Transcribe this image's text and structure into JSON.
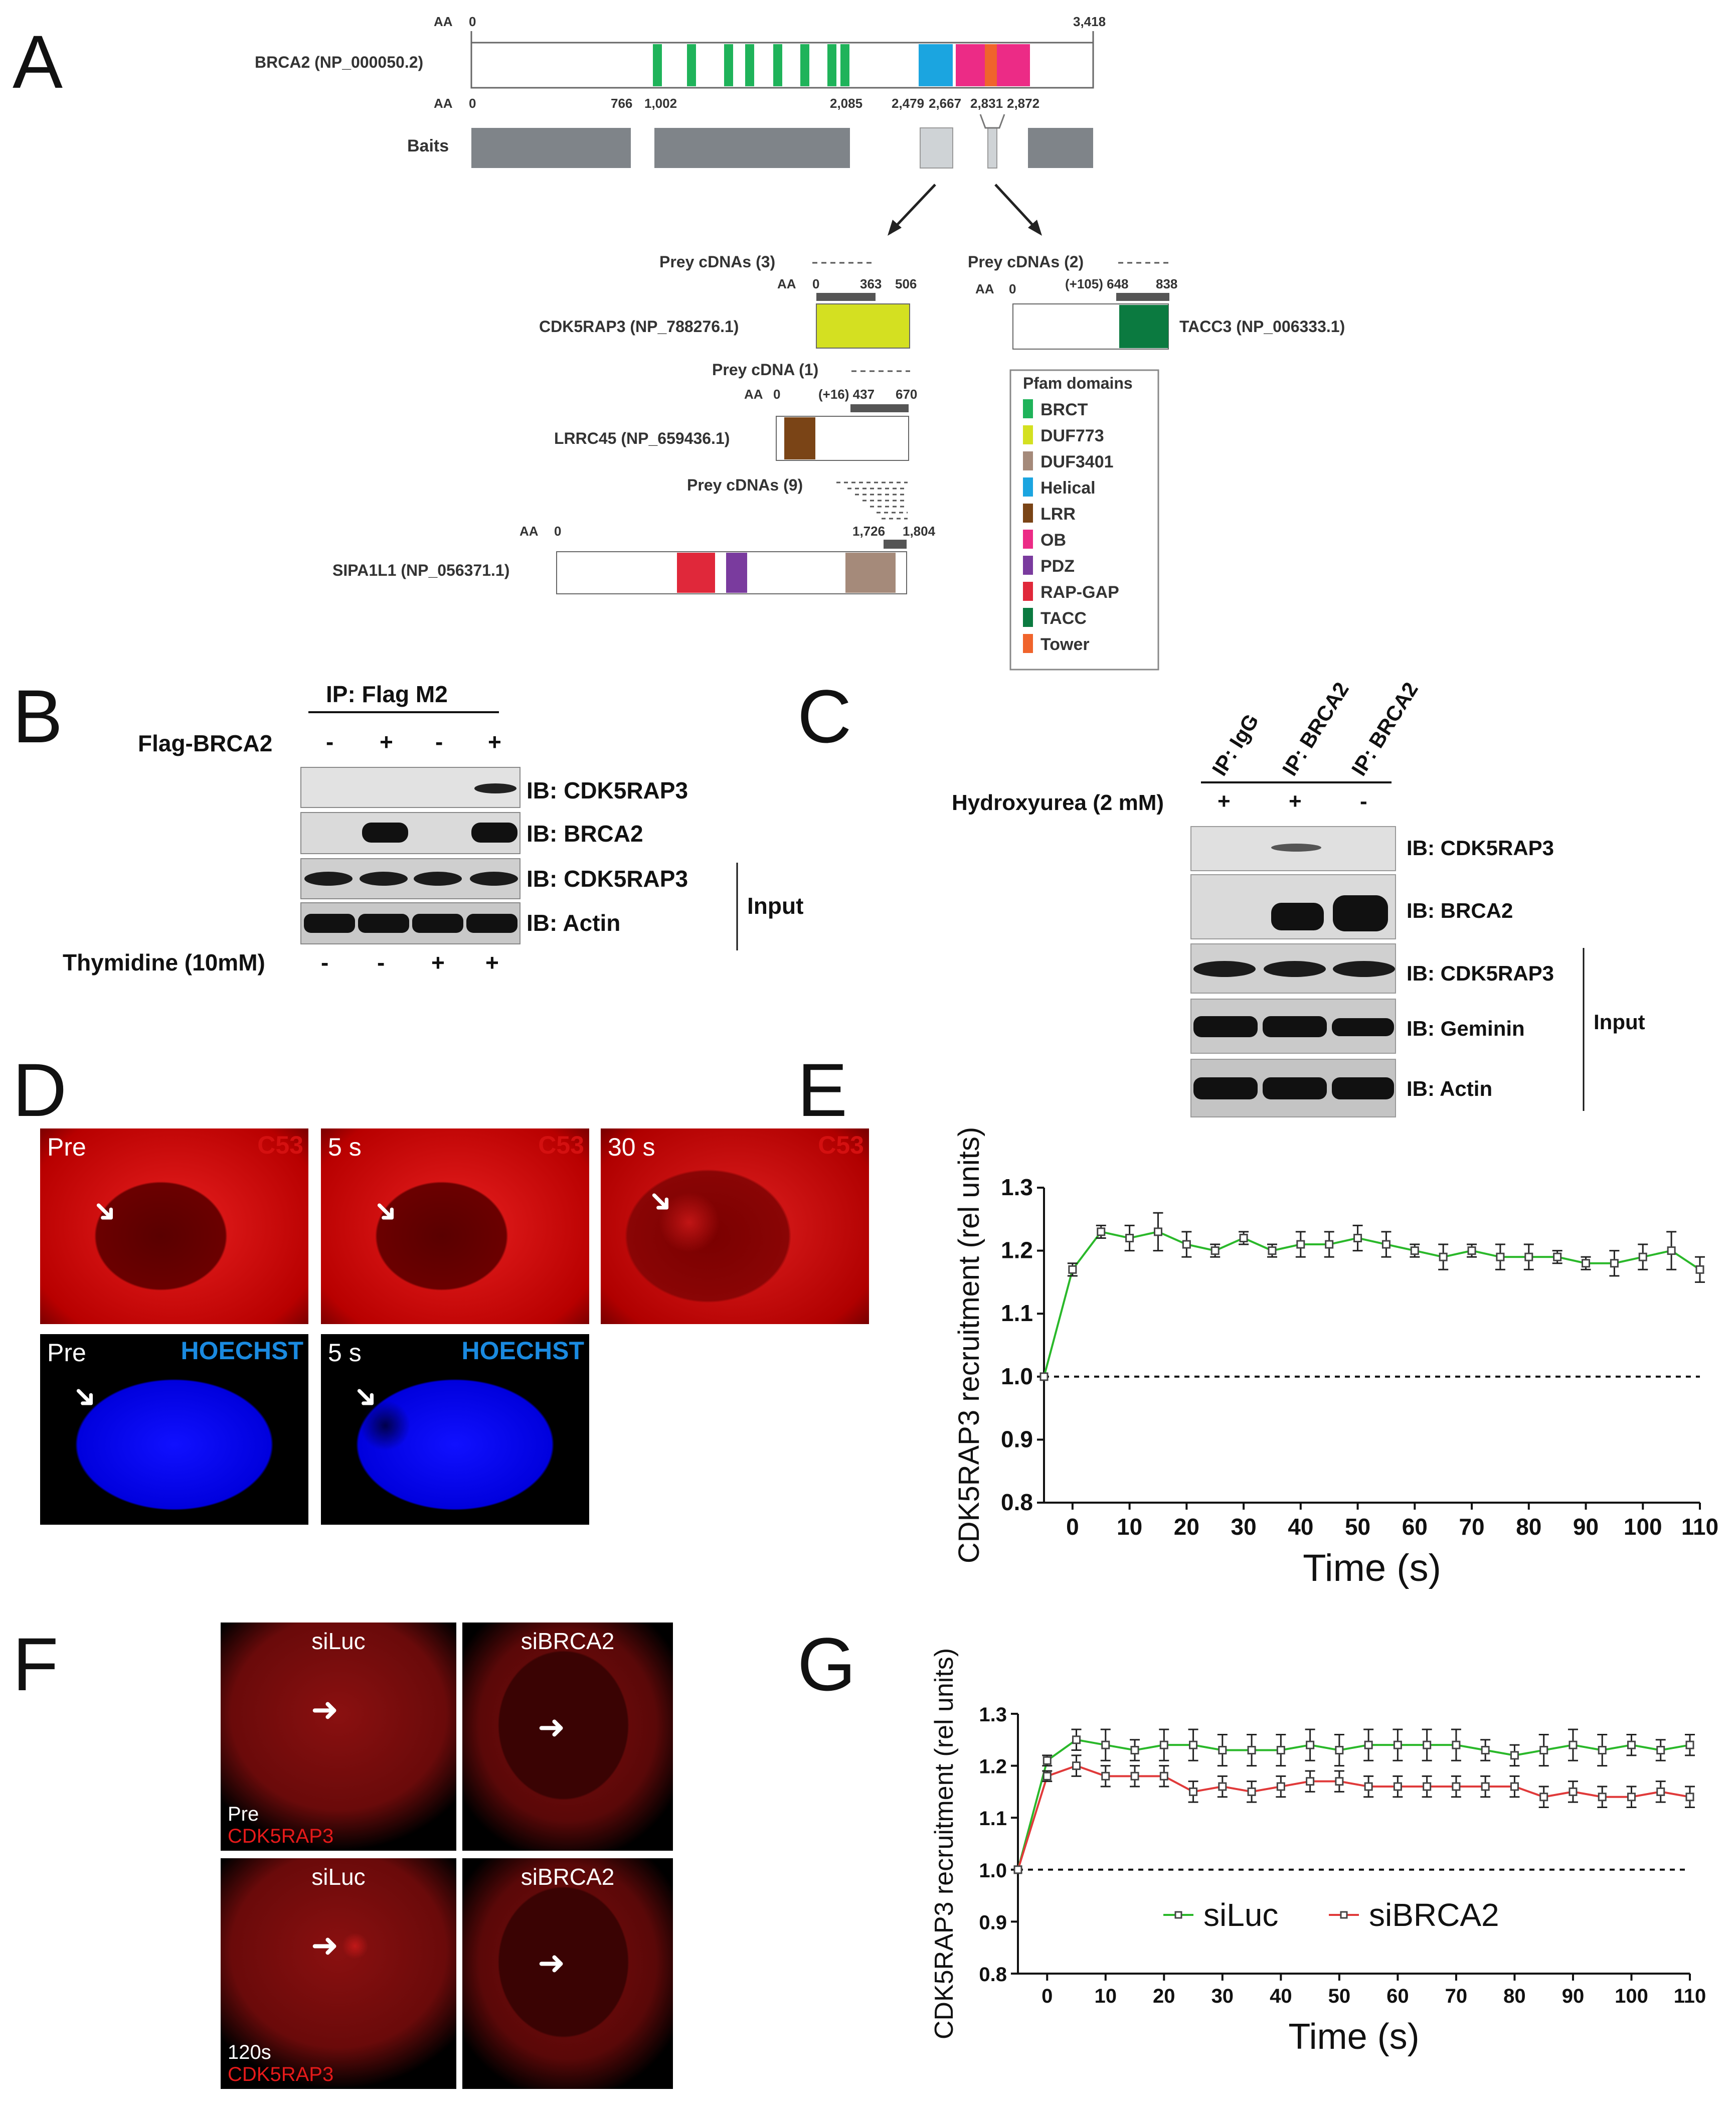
{
  "panel_letters": [
    "A",
    "B",
    "C",
    "D",
    "E",
    "F",
    "G"
  ],
  "panelA": {
    "brca2_label": "BRCA2 (NP_000050.2)",
    "aa": "AA",
    "brca2_ticks": [
      "0",
      "3,418"
    ],
    "baits_label": "Baits",
    "bait_ticks": [
      "0",
      "766",
      "1,002",
      "2,085",
      "2,479",
      "2,667",
      "2,831",
      "2,872"
    ],
    "prey_cdk": "Prey cDNAs (3)",
    "prey_tacc": "Prey cDNAs (2)",
    "prey_lrr": "Prey cDNA (1)",
    "prey_sipa": "Prey cDNAs (9)",
    "cdk5rap3_label": "CDK5RAP3 (NP_788276.1)",
    "cdk_ticks": [
      "0",
      "363",
      "506"
    ],
    "tacc3_label": "TACC3 (NP_006333.1)",
    "tacc_ticks": [
      "0",
      "(+105) 648",
      "838"
    ],
    "lrrc45_label": "LRRC45 (NP_659436.1)",
    "lrr_ticks": [
      "0",
      "(+16) 437",
      "670"
    ],
    "sipa1l1_label": "SIPA1L1 (NP_056371.1)",
    "sipa_ticks": [
      "0",
      "1,726",
      "1,804"
    ],
    "legend_title": "Pfam domains",
    "legend": [
      {
        "name": "BRCT",
        "color": "#1fb35a"
      },
      {
        "name": "DUF773",
        "color": "#d4e021"
      },
      {
        "name": "DUF3401",
        "color": "#a58a7a"
      },
      {
        "name": "Helical",
        "color": "#1ba5e0"
      },
      {
        "name": "LRR",
        "color": "#7a4416"
      },
      {
        "name": "OB",
        "color": "#ec2b86"
      },
      {
        "name": "PDZ",
        "color": "#7a3b9e"
      },
      {
        "name": "RAP-GAP",
        "color": "#e0283a"
      },
      {
        "name": "TACC",
        "color": "#0b7a40"
      },
      {
        "name": "Tower",
        "color": "#f0642c"
      }
    ]
  },
  "panelB": {
    "ip": "IP: Flag M2",
    "row1": "Flag-BRCA2",
    "row1_vals": [
      "-",
      "+",
      "-",
      "+"
    ],
    "bands": [
      "IB: CDK5RAP3",
      "IB: BRCA2",
      "IB: CDK5RAP3",
      "IB: Actin"
    ],
    "input": "Input",
    "row2": "Thymidine (10mM)",
    "row2_vals": [
      "-",
      "-",
      "+",
      "+"
    ]
  },
  "panelC": {
    "lanes": [
      "IP: IgG",
      "IP: BRCA2",
      "IP: BRCA2"
    ],
    "row": "Hydroxyurea (2 mM)",
    "row_vals": [
      "+",
      "+",
      "-"
    ],
    "bands": [
      "IB: CDK5RAP3",
      "IB: BRCA2",
      "IB: CDK5RAP3",
      "IB: Geminin",
      "IB: Actin"
    ],
    "input": "Input"
  },
  "panelD": {
    "top": [
      {
        "time": "Pre",
        "ch": "C53"
      },
      {
        "time": "5 s",
        "ch": "C53"
      },
      {
        "time": "30 s",
        "ch": "C53"
      }
    ],
    "bottom": [
      {
        "time": "Pre",
        "ch": "HOECHST"
      },
      {
        "time": "5 s",
        "ch": "HOECHST"
      }
    ]
  },
  "panelF": {
    "top": [
      {
        "cond": "siLuc",
        "time": "Pre",
        "ch": "CDK5RAP3"
      },
      {
        "cond": "siBRCA2",
        "time": "",
        "ch": ""
      }
    ],
    "bottom": [
      {
        "cond": "siLuc",
        "time": "120s",
        "ch": "CDK5RAP3"
      },
      {
        "cond": "siBRCA2",
        "time": "",
        "ch": ""
      }
    ]
  },
  "chart_data": [
    {
      "id": "E",
      "type": "line",
      "xlabel": "Time (s)",
      "ylabel": "CDK5RAP3 recruitment (rel units)",
      "ylim": [
        0.8,
        1.3
      ],
      "yticks": [
        "0.8",
        "0.9",
        "1.0",
        "1.1",
        "1.2",
        "1.3"
      ],
      "xticks": [
        "0",
        "10",
        "20",
        "30",
        "40",
        "50",
        "60",
        "70",
        "80",
        "90",
        "100",
        "110"
      ],
      "baseline": 1.0,
      "series": [
        {
          "color": "#2ab82a",
          "x": [
            -5,
            0,
            5,
            10,
            15,
            20,
            25,
            30,
            35,
            40,
            45,
            50,
            55,
            60,
            65,
            70,
            75,
            80,
            85,
            90,
            95,
            100,
            105,
            110
          ],
          "y": [
            1.0,
            1.17,
            1.23,
            1.22,
            1.23,
            1.21,
            1.2,
            1.22,
            1.2,
            1.21,
            1.21,
            1.22,
            1.21,
            1.2,
            1.19,
            1.2,
            1.19,
            1.19,
            1.19,
            1.18,
            1.18,
            1.19,
            1.2,
            1.17
          ],
          "err": [
            0,
            0.01,
            0.01,
            0.02,
            0.03,
            0.02,
            0.01,
            0.01,
            0.01,
            0.02,
            0.02,
            0.02,
            0.02,
            0.01,
            0.02,
            0.01,
            0.02,
            0.02,
            0.01,
            0.01,
            0.02,
            0.02,
            0.03,
            0.02
          ]
        }
      ]
    },
    {
      "id": "G",
      "type": "line",
      "xlabel": "Time (s)",
      "ylabel": "CDK5RAP3 recruitment (rel units)",
      "ylim": [
        0.8,
        1.3
      ],
      "yticks": [
        "0.8",
        "0.9",
        "1.0",
        "1.1",
        "1.2",
        "1.3"
      ],
      "xticks": [
        "0",
        "10",
        "20",
        "30",
        "40",
        "50",
        "60",
        "70",
        "80",
        "90",
        "100",
        "110"
      ],
      "baseline": 1.0,
      "legend": "bottom-center",
      "series": [
        {
          "name": "siLuc",
          "color": "#2ab82a",
          "x": [
            -5,
            0,
            5,
            10,
            15,
            20,
            25,
            30,
            35,
            40,
            45,
            50,
            55,
            60,
            65,
            70,
            75,
            80,
            85,
            90,
            95,
            100,
            105,
            110
          ],
          "y": [
            1.0,
            1.21,
            1.25,
            1.24,
            1.23,
            1.24,
            1.24,
            1.23,
            1.23,
            1.23,
            1.24,
            1.23,
            1.24,
            1.24,
            1.24,
            1.24,
            1.23,
            1.22,
            1.23,
            1.24,
            1.23,
            1.24,
            1.23,
            1.24
          ],
          "err": [
            0,
            0.01,
            0.02,
            0.03,
            0.02,
            0.03,
            0.03,
            0.03,
            0.03,
            0.03,
            0.03,
            0.03,
            0.03,
            0.03,
            0.03,
            0.03,
            0.02,
            0.02,
            0.03,
            0.03,
            0.03,
            0.02,
            0.02,
            0.02
          ]
        },
        {
          "name": "siBRCA2",
          "color": "#e03a3a",
          "x": [
            -5,
            0,
            5,
            10,
            15,
            20,
            25,
            30,
            35,
            40,
            45,
            50,
            55,
            60,
            65,
            70,
            75,
            80,
            85,
            90,
            95,
            100,
            105,
            110
          ],
          "y": [
            1.0,
            1.18,
            1.2,
            1.18,
            1.18,
            1.18,
            1.15,
            1.16,
            1.15,
            1.16,
            1.17,
            1.17,
            1.16,
            1.16,
            1.16,
            1.16,
            1.16,
            1.16,
            1.14,
            1.15,
            1.14,
            1.14,
            1.15,
            1.14
          ],
          "err": [
            0,
            0.01,
            0.02,
            0.02,
            0.02,
            0.02,
            0.02,
            0.02,
            0.02,
            0.02,
            0.02,
            0.02,
            0.02,
            0.02,
            0.02,
            0.02,
            0.02,
            0.02,
            0.02,
            0.02,
            0.02,
            0.02,
            0.02,
            0.02
          ]
        }
      ]
    }
  ]
}
